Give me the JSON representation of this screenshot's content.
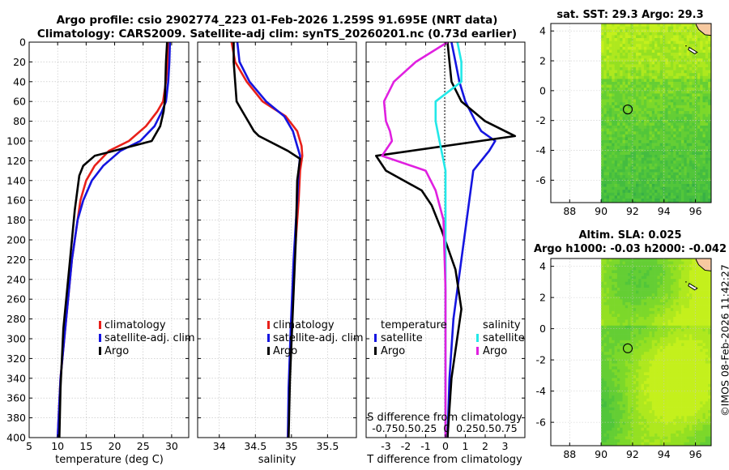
{
  "figure": {
    "title_line1": "Argo profile: csio 2902774_223 01-Feb-2026 1.259S 91.695E (NRT data)",
    "title_line2": "Climatology: CARS2009. Satellite-adj clim: synTS_20260201.nc (0.73d earlier)",
    "timestamp": "©IMOS 08-Feb-2026 11:42:27"
  },
  "colors": {
    "climatology": "#e8201a",
    "satellite": "#1515e0",
    "argo": "#000000",
    "salinity_satellite": "#22e8e8",
    "salinity_argo": "#e020e0",
    "land": "#f7c9a0",
    "sea_bright": "#b8ee1e",
    "sea_mid": "#56d438",
    "sea_dark": "#2fb24a"
  },
  "chart_data": [
    {
      "id": "temperature",
      "type": "line",
      "xlabel": "temperature (deg C)",
      "ylabel": "",
      "xlim": [
        5,
        33
      ],
      "ylim": [
        400,
        0
      ],
      "xticks": [
        "5",
        "10",
        "15",
        "20",
        "25",
        "30"
      ],
      "yticks": [
        "0",
        "20",
        "40",
        "60",
        "80",
        "100",
        "120",
        "140",
        "160",
        "180",
        "200",
        "220",
        "240",
        "260",
        "280",
        "300",
        "320",
        "340",
        "360",
        "380",
        "400"
      ],
      "legend": [
        "climatology",
        "satellite-adj. clim",
        "Argo"
      ],
      "series": [
        {
          "name": "climatology",
          "x": [
            29.4,
            29.3,
            29.0,
            28.5,
            27.5,
            25.5,
            22.5,
            19.0,
            16.5,
            15.0,
            14.0,
            13.5,
            12.5,
            11.5,
            10.5,
            10.0
          ],
          "y": [
            0,
            20,
            40,
            60,
            70,
            85,
            100,
            110,
            125,
            140,
            160,
            180,
            220,
            280,
            340,
            400
          ]
        },
        {
          "name": "satellite-adj. clim",
          "x": [
            29.7,
            29.6,
            29.4,
            29.0,
            28.3,
            27.0,
            24.5,
            21.0,
            18.0,
            16.0,
            14.5,
            13.5,
            12.5,
            11.5,
            10.5,
            10.0
          ],
          "y": [
            0,
            20,
            40,
            60,
            70,
            85,
            100,
            110,
            125,
            140,
            160,
            180,
            220,
            280,
            340,
            400
          ]
        },
        {
          "name": "Argo",
          "x": [
            29.2,
            29.0,
            28.9,
            28.8,
            28.6,
            28.0,
            26.5,
            16.5,
            14.5,
            13.8,
            13.0,
            12.0,
            11.0,
            10.5,
            10.3
          ],
          "y": [
            0,
            20,
            40,
            60,
            70,
            85,
            100,
            115,
            125,
            135,
            170,
            230,
            290,
            350,
            400
          ]
        }
      ]
    },
    {
      "id": "salinity",
      "type": "line",
      "xlabel": "salinity",
      "ylabel": "",
      "xlim": [
        33.7,
        35.9
      ],
      "ylim": [
        400,
        0
      ],
      "xticks": [
        "34",
        "34.5",
        "35",
        "35.5"
      ],
      "legend": [
        "climatology",
        "satellite-adj. clim",
        "Argo"
      ],
      "series": [
        {
          "name": "climatology",
          "x": [
            34.17,
            34.22,
            34.38,
            34.6,
            34.92,
            35.08,
            35.14,
            35.15,
            35.12,
            35.1,
            35.04,
            35.0,
            34.97,
            34.95
          ],
          "y": [
            0,
            20,
            40,
            60,
            75,
            90,
            105,
            115,
            130,
            160,
            220,
            290,
            350,
            400
          ]
        },
        {
          "name": "satellite-adj. clim",
          "x": [
            34.25,
            34.28,
            34.42,
            34.65,
            34.9,
            35.02,
            35.08,
            35.12,
            35.1,
            35.08,
            35.03,
            34.99,
            34.96,
            34.95
          ],
          "y": [
            0,
            20,
            40,
            60,
            75,
            90,
            105,
            115,
            130,
            160,
            220,
            290,
            350,
            400
          ]
        },
        {
          "name": "Argo",
          "x": [
            34.2,
            34.2,
            34.22,
            34.24,
            34.32,
            34.4,
            34.48,
            34.55,
            34.95,
            35.12,
            35.08,
            35.06,
            35.02,
            34.98,
            34.96
          ],
          "y": [
            0,
            20,
            40,
            60,
            70,
            80,
            90,
            95,
            110,
            118,
            140,
            200,
            270,
            340,
            400
          ]
        }
      ]
    },
    {
      "id": "difference",
      "type": "line",
      "xlabel": "T difference from climatology",
      "xlabel_top": "S difference from climatology",
      "secondary_ticks": [
        "-0.75",
        "-0.5",
        "-0.25",
        "0",
        "0.25",
        "0.5",
        "0.75"
      ],
      "secondary_ticks_raw": "-0.750.50.25  0  0.250.50.75",
      "xlim": [
        -4,
        4
      ],
      "ylim": [
        400,
        0
      ],
      "xticks": [
        "-3",
        "-2",
        "-1",
        "0",
        "1",
        "2",
        "3"
      ],
      "legend_temperature_title": "temperature",
      "legend_salinity_title": "salinity",
      "legend": [
        "satellite",
        "Argo",
        "satellite",
        "Argo"
      ],
      "series": [
        {
          "name": "temperature satellite",
          "x": [
            0.3,
            0.5,
            0.7,
            1.0,
            1.5,
            1.8,
            2.5,
            2.2,
            1.4,
            1.2,
            1.0,
            0.8,
            0.4,
            0.2,
            0.1
          ],
          "y": [
            0,
            20,
            40,
            60,
            80,
            90,
            100,
            110,
            130,
            160,
            190,
            220,
            280,
            340,
            400
          ]
        },
        {
          "name": "temperature Argo",
          "x": [
            0.1,
            0.2,
            0.3,
            0.8,
            2.0,
            3.5,
            -3.5,
            -3.0,
            -1.2,
            -0.7,
            -0.2,
            0.5,
            0.8,
            0.3,
            0.1
          ],
          "y": [
            0,
            20,
            40,
            60,
            80,
            95,
            115,
            130,
            150,
            165,
            190,
            230,
            270,
            340,
            400
          ]
        },
        {
          "name": "salinity satellite",
          "x": [
            0.6,
            0.8,
            0.8,
            -0.5,
            -0.5,
            -0.3,
            0.0,
            0.0,
            0.0,
            0.0
          ],
          "y": [
            0,
            20,
            40,
            60,
            80,
            100,
            130,
            180,
            260,
            400
          ]
        },
        {
          "name": "salinity Argo",
          "x": [
            0.1,
            -1.5,
            -2.6,
            -3.1,
            -3.0,
            -2.8,
            -2.7,
            -3.2,
            -1.0,
            -0.5,
            -0.1,
            0.0,
            0.0
          ],
          "y": [
            0,
            20,
            40,
            60,
            80,
            90,
            100,
            115,
            130,
            150,
            180,
            250,
            400
          ]
        }
      ]
    },
    {
      "id": "sst_map",
      "type": "heatmap",
      "title": "sat. SST: 29.3 Argo: 29.3",
      "xlim": [
        86.8,
        97
      ],
      "ylim": [
        -7.5,
        4.5
      ],
      "xticks": [
        "88",
        "90",
        "92",
        "94",
        "96"
      ],
      "yticks": [
        "4",
        "2",
        "0",
        "-2",
        "-4",
        "-6"
      ],
      "argo_position": {
        "lon": 91.695,
        "lat": -1.259
      }
    },
    {
      "id": "sla_map",
      "type": "heatmap",
      "title_line1": "Altim. SLA: 0.025",
      "title_line2": "Argo h1000: -0.03 h2000: -0.042",
      "xlim": [
        86.8,
        97
      ],
      "ylim": [
        -7.5,
        4.5
      ],
      "xticks": [
        "88",
        "90",
        "92",
        "94",
        "96"
      ],
      "yticks": [
        "4",
        "2",
        "0",
        "-2",
        "-4",
        "-6"
      ],
      "argo_position": {
        "lon": 91.695,
        "lat": -1.259
      }
    }
  ]
}
